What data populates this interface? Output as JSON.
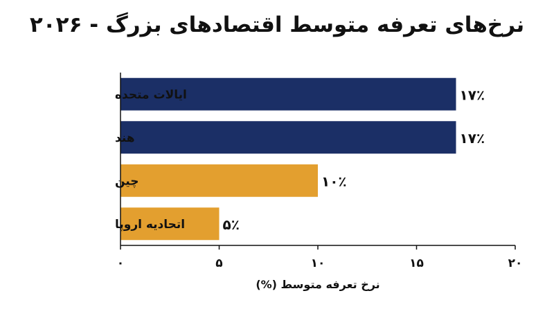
{
  "chart_data": {
    "type": "bar",
    "orientation": "horizontal",
    "title": "نرخ‌های تعرفه متوسط اقتصادهای بزرگ - ۲۰۲۶",
    "categories": [
      "ایالات متحده",
      "هند",
      "چین",
      "اتحادیه اروپا"
    ],
    "values": [
      17,
      17,
      10,
      5
    ],
    "value_labels": [
      "۱۷٪",
      "۱۷٪",
      "۱۰٪",
      "۵٪"
    ],
    "bar_colors": [
      "#1b2f66",
      "#1b2f66",
      "#e39f2f",
      "#e39f2f"
    ],
    "xlabel": "نرخ تعرفه متوسط (%)",
    "xlim": [
      0,
      20
    ],
    "xticks": [
      0,
      5,
      10,
      15,
      20
    ],
    "xtick_labels": [
      "۰",
      "۵",
      "۱۰",
      "۱۵",
      "۲۰"
    ],
    "grid": false,
    "legend": "none"
  }
}
